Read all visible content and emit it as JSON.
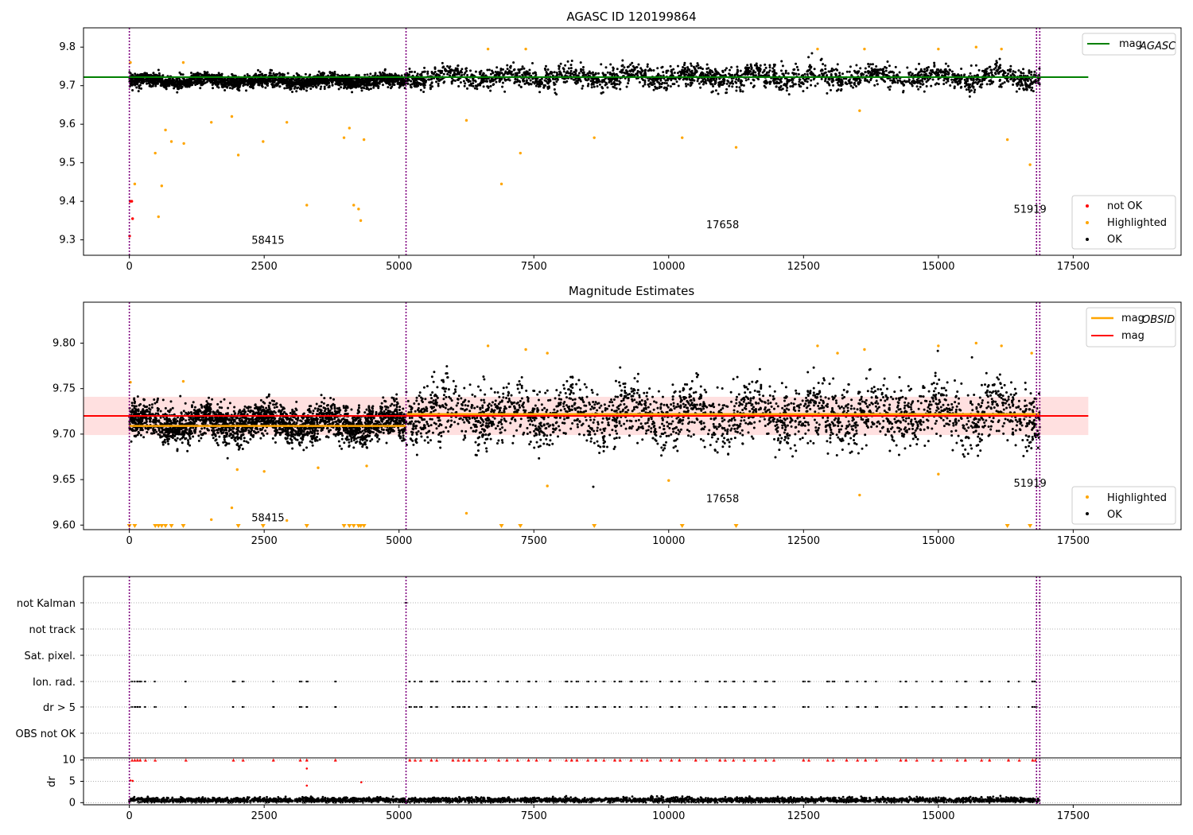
{
  "chart_data": [
    {
      "type": "scatter",
      "title": "AGASC ID 120199864",
      "xlim": [
        -850,
        19500
      ],
      "ylim": [
        9.26,
        9.85
      ],
      "xticks": [
        0,
        2500,
        5000,
        7500,
        10000,
        12500,
        15000,
        17500
      ],
      "xtick_labels": [
        "0",
        "2500",
        "5000",
        "7500",
        "10000",
        "12500",
        "15000",
        "17500"
      ],
      "yticks": [
        9.3,
        9.4,
        9.5,
        9.6,
        9.7,
        9.8
      ],
      "ytick_labels": [
        "9.3",
        "9.4",
        "9.5",
        "9.6",
        "9.7",
        "9.8"
      ],
      "obsid_boundaries": [
        0,
        5130,
        16820,
        16880
      ],
      "obsid_labels": [
        {
          "text": "58415",
          "x": 2570,
          "y": 9.29
        },
        {
          "text": "17658",
          "x": 11000,
          "y": 9.33
        },
        {
          "text": "51919",
          "x": 16700,
          "y": 9.37
        }
      ],
      "reference_lines": [
        {
          "name": "mag_AGASC",
          "legend_label": "mag",
          "legend_sub": "AGASC",
          "y": 9.722,
          "x_range": [
            -850,
            17780
          ],
          "color": "#008000"
        }
      ],
      "series": [
        {
          "name": "not OK",
          "color": "#ff0000",
          "description": "few points near x=0..100",
          "points": [
            [
              15,
              9.4
            ],
            [
              45,
              9.4
            ],
            [
              60,
              9.355
            ],
            [
              5,
              9.31
            ]
          ]
        },
        {
          "name": "Highlighted",
          "color": "#ffa500",
          "points": [
            [
              20,
              9.76
            ],
            [
              100,
              9.445
            ],
            [
              480,
              9.525
            ],
            [
              540,
              9.36
            ],
            [
              600,
              9.44
            ],
            [
              670,
              9.585
            ],
            [
              780,
              9.555
            ],
            [
              1000,
              9.76
            ],
            [
              1010,
              9.55
            ],
            [
              1520,
              9.605
            ],
            [
              1900,
              9.62
            ],
            [
              2020,
              9.52
            ],
            [
              2480,
              9.555
            ],
            [
              2920,
              9.605
            ],
            [
              3290,
              9.39
            ],
            [
              3980,
              9.565
            ],
            [
              4080,
              9.59
            ],
            [
              4160,
              9.39
            ],
            [
              4250,
              9.38
            ],
            [
              4290,
              9.35
            ],
            [
              4350,
              9.56
            ],
            [
              6250,
              9.61
            ],
            [
              6900,
              9.445
            ],
            [
              7250,
              9.525
            ],
            [
              8620,
              9.565
            ],
            [
              10250,
              9.565
            ],
            [
              11250,
              9.54
            ],
            [
              13540,
              9.635
            ],
            [
              16280,
              9.56
            ],
            [
              16700,
              9.495
            ],
            [
              6650,
              9.795
            ],
            [
              7350,
              9.795
            ],
            [
              12760,
              9.795
            ],
            [
              13630,
              9.795
            ],
            [
              15000,
              9.795
            ],
            [
              15700,
              9.8
            ],
            [
              16170,
              9.795
            ]
          ]
        },
        {
          "name": "OK",
          "color": "#000000",
          "description": "dense band of ~17000 points around the mean",
          "segments": [
            {
              "x_range": [
                0,
                5130
              ],
              "center": 9.712,
              "spread": 0.015
            },
            {
              "x_range": [
                5130,
                16880
              ],
              "center": 9.722,
              "spread": 0.025
            }
          ]
        }
      ],
      "legend": {
        "position": "top-right and lower-right",
        "entries": [
          "mag_AGASC",
          "not OK",
          "Highlighted",
          "OK"
        ]
      }
    },
    {
      "type": "scatter",
      "title": "Magnitude Estimates",
      "xlim": [
        -850,
        19500
      ],
      "ylim": [
        9.595,
        9.845
      ],
      "xticks": [
        0,
        2500,
        5000,
        7500,
        10000,
        12500,
        15000,
        17500
      ],
      "xtick_labels": [
        "0",
        "2500",
        "5000",
        "7500",
        "10000",
        "12500",
        "15000",
        "17500"
      ],
      "yticks": [
        9.6,
        9.65,
        9.7,
        9.75,
        9.8
      ],
      "ytick_labels": [
        "9.60",
        "9.65",
        "9.70",
        "9.75",
        "9.80"
      ],
      "obsid_boundaries": [
        0,
        5130,
        16820,
        16880
      ],
      "obsid_labels": [
        {
          "text": "58415",
          "x": 2570,
          "y": 9.604
        },
        {
          "text": "17658",
          "x": 11000,
          "y": 9.625
        },
        {
          "text": "51919",
          "x": 16700,
          "y": 9.642
        }
      ],
      "reference_lines": [
        {
          "name": "mag_OBSID",
          "legend_label": "mag",
          "legend_sub": "OBSID",
          "color": "#ffa500",
          "segments": [
            {
              "x_range": [
                0,
                5130
              ],
              "y": 9.709
            },
            {
              "x_range": [
                5130,
                16880
              ],
              "y": 9.722
            }
          ]
        },
        {
          "name": "mag",
          "legend_label": "mag",
          "color": "#ff0000",
          "y": 9.72,
          "band": [
            9.699,
            9.741
          ],
          "x_range": [
            -850,
            17780
          ]
        }
      ],
      "series": [
        {
          "name": "Highlighted",
          "color": "#ffa500",
          "points": [
            [
              20,
              9.757
            ],
            [
              1000,
              9.758
            ],
            [
              6650,
              9.797
            ],
            [
              7350,
              9.793
            ],
            [
              7750,
              9.789
            ],
            [
              12760,
              9.797
            ],
            [
              13130,
              9.789
            ],
            [
              13630,
              9.793
            ],
            [
              15000,
              9.797
            ],
            [
              15700,
              9.8
            ],
            [
              16170,
              9.797
            ],
            [
              16730,
              9.789
            ],
            [
              13540,
              9.633
            ],
            [
              6250,
              9.613
            ],
            [
              1900,
              9.619
            ],
            [
              1520,
              9.606
            ],
            [
              2920,
              9.605
            ],
            [
              7750,
              9.643
            ],
            [
              10000,
              9.649
            ],
            [
              15000,
              9.656
            ],
            [
              2000,
              9.661
            ],
            [
              2500,
              9.659
            ],
            [
              3500,
              9.663
            ],
            [
              4400,
              9.665
            ]
          ],
          "below_axis_markers_x": [
            0,
            100,
            480,
            540,
            600,
            670,
            780,
            1000,
            2020,
            2480,
            3290,
            3980,
            4080,
            4160,
            4250,
            4290,
            4350,
            6900,
            7250,
            8620,
            10250,
            11250,
            16280,
            16700
          ]
        },
        {
          "name": "OK",
          "color": "#000000",
          "segments": [
            {
              "x_range": [
                0,
                5130
              ],
              "center": 9.712,
              "spread": 0.017
            },
            {
              "x_range": [
                5130,
                16880
              ],
              "center": 9.722,
              "spread": 0.028
            }
          ]
        }
      ],
      "legend": {
        "position": "top-right and lower-right",
        "entries": [
          "mag_OBSID",
          "mag",
          "Highlighted",
          "OK"
        ]
      }
    },
    {
      "type": "scatter",
      "title": "",
      "xlim": [
        -850,
        19500
      ],
      "flag_rows": [
        "not Kalman",
        "not track",
        "Sat. pixel.",
        "Ion. rad.",
        "dr > 5",
        "OBS not OK"
      ],
      "flag_points": {
        "Ion. rad.": [
          50,
          100,
          150,
          200,
          300,
          480,
          1050,
          1930,
          2110,
          2670,
          3170,
          3290,
          3820,
          5200,
          5300,
          5400,
          5600,
          5700,
          6000,
          6100,
          6200,
          6300,
          6450,
          6600,
          6850,
          7000,
          7200,
          7400,
          7550,
          7800,
          8100,
          8200,
          8300,
          8500,
          8650,
          8800,
          9000,
          9100,
          9300,
          9500,
          9600,
          9850,
          10050,
          10200,
          10500,
          10700,
          10950,
          11050,
          11200,
          11400,
          11600,
          11800,
          11950,
          12500,
          12600,
          12950,
          13050,
          13300,
          13500,
          13650,
          13850,
          14300,
          14400,
          14600,
          14900,
          15050,
          15350,
          15500,
          15800,
          15950,
          16300,
          16500,
          16750,
          16800
        ],
        "dr > 5": [
          50,
          100,
          150,
          200,
          300,
          480,
          1050,
          1930,
          2110,
          2670,
          3170,
          3290,
          3820,
          5200,
          5300,
          5400,
          5600,
          5700,
          6000,
          6100,
          6200,
          6300,
          6450,
          6600,
          6850,
          7000,
          7200,
          7400,
          7550,
          7800,
          8100,
          8200,
          8300,
          8500,
          8650,
          8800,
          9000,
          9100,
          9300,
          9500,
          9600,
          9850,
          10050,
          10200,
          10500,
          10700,
          10950,
          11050,
          11200,
          11400,
          11600,
          11800,
          11950,
          12500,
          12600,
          12950,
          13050,
          13300,
          13500,
          13650,
          13850,
          14300,
          14400,
          14600,
          14900,
          15050,
          15350,
          15500,
          15800,
          15950,
          16300,
          16500,
          16750,
          16800
        ],
        "not Kalman": [
          5130,
          16880
        ]
      },
      "obsid_boundaries": [
        0,
        5130,
        16820,
        16880
      ]
    },
    {
      "type": "scatter",
      "title": "",
      "ylabel": "dr",
      "xlim": [
        -850,
        19500
      ],
      "ylim": [
        -0.5,
        10.5
      ],
      "yticks": [
        0,
        5,
        10
      ],
      "ytick_labels": [
        "0",
        "5",
        "10"
      ],
      "xticks": [
        0,
        2500,
        5000,
        7500,
        10000,
        12500,
        15000,
        17500
      ],
      "xtick_labels": [
        "0",
        "2500",
        "5000",
        "7500",
        "10000",
        "12500",
        "15000",
        "17500"
      ],
      "series": [
        {
          "name": "dr",
          "color": "#000000",
          "description": "dense scatter of dr values mostly between 0 and 1.5",
          "center": 0.6,
          "spread": 0.5
        },
        {
          "name": "dr clipped",
          "color": "#ff0000",
          "description": "red triangles at the clip value of 10",
          "points_x": [
            50,
            100,
            150,
            200,
            300,
            480,
            1050,
            1930,
            2110,
            2670,
            3170,
            3290,
            3820,
            5200,
            5300,
            5400,
            5600,
            5700,
            6000,
            6100,
            6200,
            6300,
            6450,
            6600,
            6850,
            7000,
            7200,
            7400,
            7550,
            7800,
            8100,
            8200,
            8300,
            8500,
            8650,
            8800,
            9000,
            9100,
            9300,
            9500,
            9600,
            9850,
            10050,
            10200,
            10500,
            10700,
            10950,
            11050,
            11200,
            11400,
            11600,
            11800,
            11950,
            12500,
            12600,
            12950,
            13050,
            13300,
            13500,
            13650,
            13850,
            14300,
            14400,
            14600,
            14900,
            15050,
            15350,
            15500,
            15800,
            15950,
            16300,
            16500,
            16750,
            16800
          ],
          "extra_points": [
            [
              20,
              5.2
            ],
            [
              60,
              5.1
            ],
            [
              3290,
              8.0
            ],
            [
              3290,
              4.0
            ],
            [
              4300,
              4.8
            ]
          ]
        }
      ],
      "obsid_boundaries": [
        0,
        5130,
        16820,
        16880
      ]
    }
  ],
  "colors": {
    "ok": "#000000",
    "highlighted": "#ffa500",
    "not_ok": "#ff0000",
    "agasc_line": "#008000",
    "obsid_line": "#ffa500",
    "mag_line": "#ff0000",
    "mag_band": "#ffcccc",
    "boundary": "#800080",
    "grid": "#b0b0b0"
  }
}
